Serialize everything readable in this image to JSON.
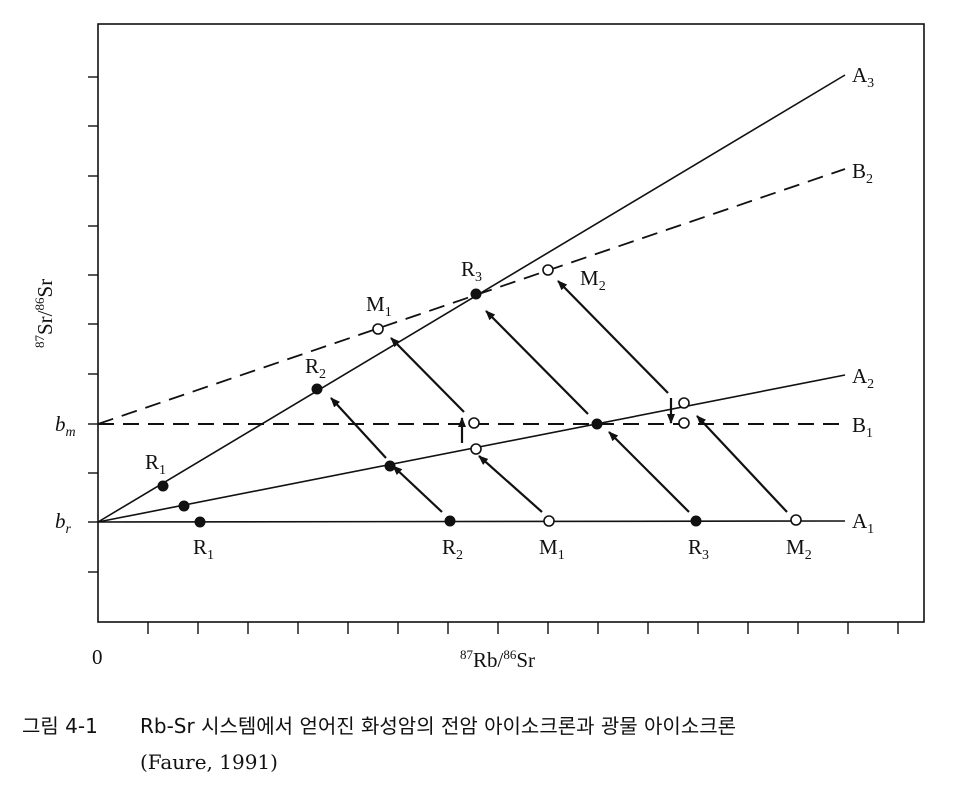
{
  "axes": {
    "x_title_num": "87",
    "x_title_a": "Rb",
    "x_title_sep": "/",
    "x_title_den": "86",
    "x_title_b": "Sr",
    "y_title_num": "87",
    "y_title_a": "Sr",
    "y_title_sep": "/",
    "y_title_den": "86",
    "y_title_b": "Sr",
    "origin": "0",
    "b_m": "b",
    "b_m_sub": "m",
    "b_r": "b",
    "b_r_sub": "r"
  },
  "lines": {
    "A1": {
      "main": "A",
      "sub": "1"
    },
    "A2": {
      "main": "A",
      "sub": "2"
    },
    "A3": {
      "main": "A",
      "sub": "3"
    },
    "B1": {
      "main": "B",
      "sub": "1"
    },
    "B2": {
      "main": "B",
      "sub": "2"
    }
  },
  "points": {
    "R1_lower": {
      "main": "R",
      "sub": "1"
    },
    "R1_upper": {
      "main": "R",
      "sub": "1"
    },
    "R2_lower": {
      "main": "R",
      "sub": "2"
    },
    "R2_upper": {
      "main": "R",
      "sub": "2"
    },
    "R3_lower": {
      "main": "R",
      "sub": "3"
    },
    "R3_upper": {
      "main": "R",
      "sub": "3"
    },
    "M1_lower": {
      "main": "M",
      "sub": "1"
    },
    "M1_upper": {
      "main": "M",
      "sub": "1"
    },
    "M2_lower": {
      "main": "M",
      "sub": "2"
    },
    "M2_upper": {
      "main": "M",
      "sub": "2"
    }
  },
  "caption": {
    "number": "그림 4-1",
    "text": "Rb-Sr 시스템에서 얻어진 화성암의 전암 아이소크론과 광물 아이소크론",
    "citation": "(Faure, 1991)"
  }
}
